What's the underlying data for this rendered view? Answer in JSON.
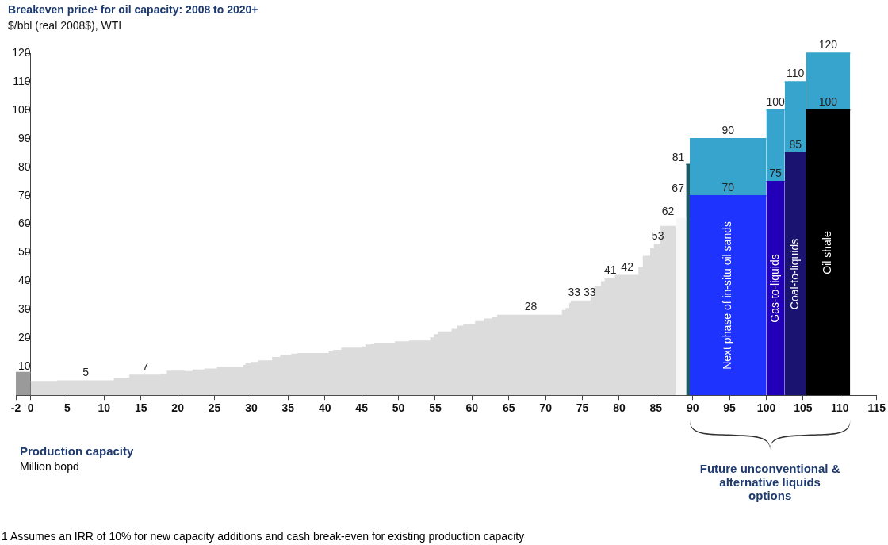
{
  "chart_data": {
    "type": "area",
    "title": "Breakeven price¹ for oil capacity: 2008 to 2020+",
    "subtitle": "$/bbl (real 2008$), WTI",
    "xlabel": "Production capacity",
    "xlim": [
      -2,
      115
    ],
    "xticks": [
      -2,
      0,
      5,
      10,
      15,
      20,
      25,
      30,
      35,
      40,
      45,
      50,
      55,
      60,
      65,
      70,
      75,
      80,
      85,
      90,
      95,
      100,
      105,
      110,
      115
    ],
    "ylim": [
      0,
      120
    ],
    "yticks": [
      10,
      20,
      30,
      40,
      50,
      60,
      70,
      80,
      90,
      100,
      110,
      120
    ],
    "series": [
      {
        "color": "#9a9a9a",
        "x": [
          -2,
          0
        ],
        "values": [
          8,
          8
        ]
      },
      {
        "color": "#dcdcdc",
        "x": [
          0,
          3.7,
          3.7,
          7.5,
          11.4,
          11.4,
          13.5,
          13.5,
          15.6,
          17.7,
          17.7,
          18.6,
          18.6,
          20.9,
          20.9,
          22.1,
          22.1,
          23.7,
          23.7,
          25.4,
          25.4,
          29.0,
          29.0,
          29.3,
          29.3,
          30.0,
          30.0,
          31.0,
          31.0,
          32.9,
          32.9,
          34.0,
          34.0,
          35.5,
          35.5,
          36.3,
          36.3,
          40.6,
          40.6,
          41.2,
          41.2,
          42.3,
          42.3,
          45.1,
          45.1,
          45.6,
          45.6,
          46.3,
          46.3,
          46.8,
          46.8,
          49.6,
          49.6,
          51.5,
          51.5,
          54.4,
          54.4,
          54.9,
          54.9,
          55.4,
          55.4,
          57.3,
          57.3,
          58.1,
          58.1,
          58.9,
          58.9,
          60.5,
          60.5,
          61.7,
          61.7,
          62.8,
          62.8,
          63.5,
          63.5,
          68,
          72.3,
          72.3,
          72.8,
          72.8,
          73.3,
          73.3,
          73.5,
          73.5,
          73.9,
          76.0,
          76.2,
          76.2,
          76.7,
          76.7,
          77.6,
          77.6,
          78.1,
          78.1,
          78.8,
          79.5,
          79.5,
          81.1,
          82.7,
          82.7,
          83.3,
          83.3,
          84.3,
          84.3,
          84.8,
          84.8,
          85.25,
          85.7,
          85.7,
          87.7
        ],
        "values": [
          4.8,
          4.8,
          5,
          5,
          5,
          6.0,
          6.0,
          7,
          7,
          7,
          7.2,
          7.2,
          8.4,
          8.4,
          8.3,
          8.3,
          8.8,
          8.8,
          9.2,
          9.2,
          9.8,
          9.8,
          10.5,
          10.5,
          11.0,
          11.0,
          11.5,
          11.5,
          12.0,
          12.0,
          13.2,
          13.2,
          13.9,
          13.9,
          14.4,
          14.4,
          14.6,
          14.6,
          15.3,
          15.3,
          15.7,
          15.7,
          16.5,
          16.5,
          16.9,
          16.9,
          17.6,
          17.6,
          17.9,
          17.9,
          18.2,
          18.2,
          18.7,
          18.7,
          19.0,
          19.0,
          20.1,
          20.1,
          21.2,
          21.2,
          22.2,
          22.2,
          23.1,
          23.1,
          24.2,
          24.2,
          24.8,
          24.8,
          25.8,
          25.8,
          26.7,
          26.7,
          27.1,
          27.1,
          28,
          28,
          28,
          29.7,
          29.7,
          30.4,
          30.4,
          32.2,
          32.2,
          33,
          33,
          33,
          33,
          34.4,
          34.4,
          38.1,
          38.1,
          39.8,
          39.8,
          41,
          41,
          41,
          42,
          42,
          42,
          44.7,
          44.7,
          48.7,
          48.7,
          51.3,
          51.3,
          53,
          53,
          53,
          59.2,
          59.2
        ],
        "value_labels": [
          null,
          null,
          null,
          "5",
          null,
          null,
          null,
          null,
          "7",
          null,
          null,
          null,
          null,
          null,
          null,
          null,
          null,
          null,
          null,
          null,
          null,
          null,
          null,
          null,
          null,
          null,
          null,
          null,
          null,
          null,
          null,
          null,
          null,
          null,
          null,
          null,
          null,
          null,
          null,
          null,
          null,
          null,
          null,
          null,
          null,
          null,
          null,
          null,
          null,
          null,
          null,
          null,
          null,
          null,
          null,
          null,
          null,
          null,
          null,
          null,
          null,
          null,
          null,
          null,
          null,
          null,
          null,
          null,
          null,
          null,
          null,
          null,
          null,
          null,
          null,
          "28",
          null,
          null,
          null,
          null,
          null,
          null,
          null,
          null,
          "33",
          "33",
          null,
          null,
          null,
          null,
          null,
          null,
          null,
          null,
          "41",
          null,
          null,
          "42",
          null,
          null,
          null,
          null,
          null,
          null,
          null,
          null,
          "53",
          null,
          null,
          null
        ]
      },
      {
        "color": "#f7f7f7",
        "x": [
          87.7,
          89.1
        ],
        "values": [
          62,
          62
        ],
        "value_labels": [
          "62",
          null
        ]
      },
      {
        "color": "#1e5a66",
        "x": [
          89.1,
          89.6
        ],
        "values": [
          81,
          81
        ],
        "value_labels": [
          "81",
          null
        ]
      },
      {
        "name": "Next phase of in-situ oil sands",
        "color": "#1f33ff",
        "x": [
          89.6,
          94.8,
          100
        ],
        "values": [
          70,
          70,
          70
        ],
        "value_labels": [
          null,
          "70",
          null
        ]
      },
      {
        "color": "#36a4cc",
        "x": [
          89.6,
          94.8,
          100
        ],
        "values": [
          90,
          90,
          90
        ],
        "value_labels": [
          null,
          "90",
          null
        ]
      },
      {
        "name": "Gas-to-liquids",
        "color": "#2200b8",
        "x": [
          100,
          101.25,
          102.5
        ],
        "values": [
          75,
          75,
          75
        ],
        "value_labels": [
          null,
          "75",
          null
        ]
      },
      {
        "color": "#36a4cc",
        "x": [
          100,
          101.25,
          102.5
        ],
        "values": [
          100,
          100,
          100
        ],
        "value_labels": [
          null,
          "100",
          null
        ]
      },
      {
        "name": "Coal-to-liquids",
        "color": "#1a1470",
        "x": [
          102.5,
          103.95,
          105.4
        ],
        "values": [
          85,
          85,
          85
        ],
        "value_labels": [
          null,
          "85",
          null
        ]
      },
      {
        "color": "#36a4cc",
        "x": [
          102.5,
          103.95,
          105.4
        ],
        "values": [
          110,
          110,
          110
        ],
        "value_labels": [
          null,
          "110",
          null
        ]
      },
      {
        "name": "Oil shale",
        "color": "#000000",
        "x": [
          105.4,
          108.4,
          111.4
        ],
        "values": [
          100,
          100,
          100
        ],
        "value_labels": [
          null,
          "100",
          null
        ]
      },
      {
        "color": "#36a4cc",
        "x": [
          105.4,
          108.4,
          111.4
        ],
        "values": [
          120,
          120,
          120
        ],
        "value_labels": [
          null,
          "120",
          null
        ]
      }
    ],
    "annotations": [
      "67",
      "Million bopd",
      "Future unconventional & alternative liquids options",
      "1 Assumes an IRR of 10% for new capacity additions and cash break-even for existing production capacity"
    ]
  }
}
